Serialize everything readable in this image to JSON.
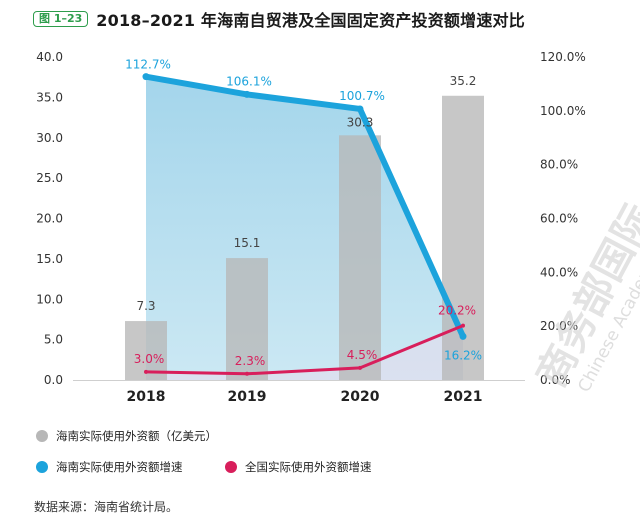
{
  "header": {
    "figure_label": "图 1–23",
    "title": "2018–2021 年海南自贸港及全国固定资产投资额增速对比"
  },
  "colors": {
    "bar": "#b7b7b7",
    "hainan_line": "#1ca3dc",
    "national_line": "#d81e5b",
    "area_fill": "#a8d8ec",
    "badge": "#2e9d4c"
  },
  "chart_data": {
    "type": "bar",
    "title": "2018–2021 年海南自贸港及全国固定资产投资额增速对比",
    "categories": [
      "2018",
      "2019",
      "2020",
      "2021"
    ],
    "y_left": {
      "lim": [
        0,
        40
      ],
      "ticks": [
        "0.0",
        "5.0",
        "10.0",
        "15.0",
        "20.0",
        "25.0",
        "30.0",
        "35.0",
        "40.0"
      ]
    },
    "y_right": {
      "lim": [
        0,
        120
      ],
      "ticks": [
        "0.0%",
        "20.0%",
        "40.0%",
        "60.0%",
        "80.0%",
        "100.0%",
        "120.0%"
      ]
    },
    "series": [
      {
        "name": "海南实际使用外资额（亿美元）",
        "type": "bar",
        "axis": "left",
        "values": [
          7.3,
          15.1,
          30.3,
          35.2
        ],
        "labels": [
          "7.3",
          "15.1",
          "30.3",
          "35.2"
        ]
      },
      {
        "name": "海南实际使用外资额增速",
        "type": "line",
        "axis": "right",
        "values": [
          112.7,
          106.1,
          100.7,
          16.2
        ],
        "labels": [
          "112.7%",
          "106.1%",
          "100.7%",
          "16.2%"
        ]
      },
      {
        "name": "全国实际使用外资额增速",
        "type": "line",
        "axis": "right",
        "values": [
          3.0,
          2.3,
          4.5,
          20.2
        ],
        "labels": [
          "3.0%",
          "2.3%",
          "4.5%",
          "20.2%"
        ]
      }
    ]
  },
  "legend": [
    {
      "label": "海南实际使用外资额（亿美元）"
    },
    {
      "label": "海南实际使用外资额增速"
    },
    {
      "label": "全国实际使用外资额增速"
    }
  ],
  "source": "数据来源：海南省统计局。",
  "watermark": {
    "cn": "商务部国际",
    "en": "Chinese Academy of I"
  }
}
